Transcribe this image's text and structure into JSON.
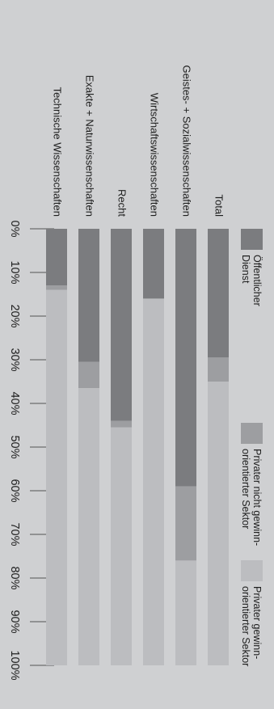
{
  "chart_data": {
    "type": "bar",
    "stacked": true,
    "orientation": "horizontal",
    "categories": [
      "Technische Wissenschaften",
      "Exakte + Naturwissenschaften",
      "Recht",
      "Wirtschaftswissenschaften",
      "Geistes- + Sozialwissenschaften",
      "Total"
    ],
    "series": [
      {
        "name": "Öffentlicher Dienst",
        "values": [
          13,
          30.5,
          44,
          16,
          59,
          29.5
        ],
        "color": "#7b7c7f"
      },
      {
        "name": "Privater nicht gewinn-orientierter Sektor",
        "values": [
          1,
          6,
          1.5,
          0,
          17,
          5.5
        ],
        "color": "#9d9ea1"
      },
      {
        "name": "Privater gewinn-orientierter Sektor",
        "values": [
          86,
          63.5,
          54.5,
          84,
          24,
          65
        ],
        "color": "#bcbdc0"
      }
    ],
    "ticks": [
      "0%",
      "10%",
      "20%",
      "30%",
      "40%",
      "50%",
      "60%",
      "70%",
      "80%",
      "90%",
      "100%"
    ],
    "xlim": [
      0,
      100
    ],
    "grid": true,
    "legend": "top"
  }
}
